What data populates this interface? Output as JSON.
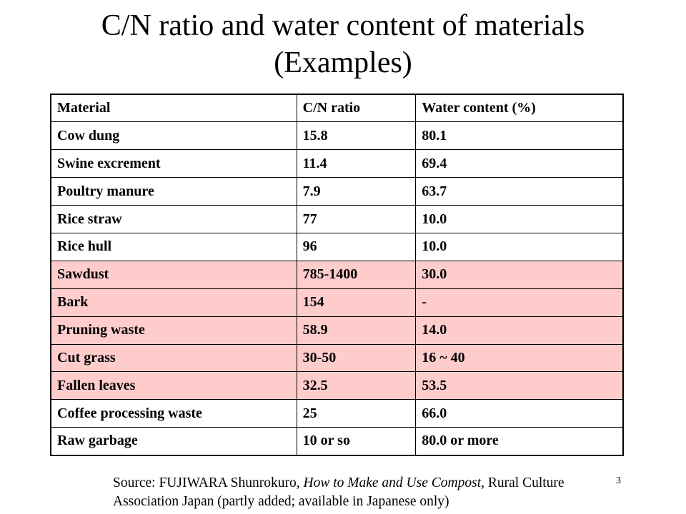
{
  "slide": {
    "title_line1": "C/N ratio and water content of materials",
    "title_line2": "(Examples)",
    "page_number": "3"
  },
  "table": {
    "headers": [
      "Material",
      "C/N ratio",
      "Water content (%)"
    ],
    "rows": [
      {
        "material": "Cow dung",
        "cn": "15.8",
        "water": "80.1",
        "highlight": false
      },
      {
        "material": "Swine excrement",
        "cn": "11.4",
        "water": "69.4",
        "highlight": false
      },
      {
        "material": "Poultry manure",
        "cn": "7.9",
        "water": "63.7",
        "highlight": false
      },
      {
        "material": "Rice straw",
        "cn": "77",
        "water": "10.0",
        "highlight": false
      },
      {
        "material": "Rice hull",
        "cn": "96",
        "water": "10.0",
        "highlight": false
      },
      {
        "material": "Sawdust",
        "cn": "785-1400",
        "water": "30.0",
        "highlight": true
      },
      {
        "material": "Bark",
        "cn": "154",
        "water": "-",
        "highlight": true
      },
      {
        "material": "Pruning waste",
        "cn": "58.9",
        "water": "14.0",
        "highlight": true
      },
      {
        "material": "Cut grass",
        "cn": "30-50",
        "water": "16 ~ 40",
        "highlight": true
      },
      {
        "material": "Fallen leaves",
        "cn": "32.5",
        "water": "53.5",
        "highlight": true
      },
      {
        "material": "Coffee processing waste",
        "cn": "25",
        "water": "66.0",
        "highlight": false
      },
      {
        "material": "Raw garbage",
        "cn": "10 or so",
        "water": "80.0 or more",
        "highlight": false
      }
    ],
    "highlight_color": "#ffcccc"
  },
  "source": {
    "prefix": "Source: FUJIWARA Shunrokuro, ",
    "book_title": "How to Make and Use Compost",
    "suffix": ", Rural Culture Association Japan (partly added; available in Japanese only)"
  }
}
